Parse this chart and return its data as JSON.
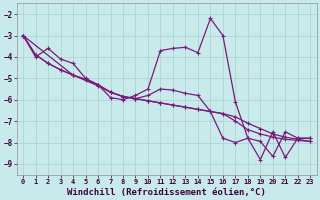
{
  "background_color": "#c8eaea",
  "grid_color": "#b0d8d8",
  "line_color": "#7b1a7b",
  "xlabel": "Windchill (Refroidissement éolien,°C)",
  "ylim": [
    -9.5,
    -1.5
  ],
  "xlim": [
    -0.5,
    23.5
  ],
  "yticks": [
    -9,
    -8,
    -7,
    -6,
    -5,
    -4,
    -3,
    -2
  ],
  "xticks": [
    0,
    1,
    2,
    3,
    4,
    5,
    6,
    7,
    8,
    9,
    10,
    11,
    12,
    13,
    14,
    15,
    16,
    17,
    18,
    19,
    20,
    21,
    22,
    23
  ],
  "line1_x": [
    0,
    1,
    2,
    3,
    4,
    5,
    6,
    7,
    8,
    9,
    10,
    11,
    12,
    13,
    14,
    15,
    16,
    17,
    18,
    19,
    20,
    21,
    22,
    23
  ],
  "line1_y": [
    -3.0,
    -4.0,
    -3.6,
    -4.1,
    -4.3,
    -5.0,
    -5.3,
    -5.9,
    -6.0,
    -5.8,
    -5.5,
    -3.7,
    -3.6,
    -3.55,
    -3.8,
    -2.2,
    -3.0,
    -6.1,
    -7.8,
    -7.95,
    -8.65,
    -7.5,
    -7.8,
    -7.8
  ],
  "line2_x": [
    0,
    1,
    2,
    3,
    4,
    5,
    6,
    7,
    8,
    9,
    10,
    11,
    12,
    13,
    14,
    15,
    16,
    17,
    18,
    19,
    20,
    21,
    22,
    23
  ],
  "line2_y": [
    -3.0,
    -3.9,
    -4.3,
    -4.6,
    -4.85,
    -5.1,
    -5.35,
    -5.65,
    -5.85,
    -5.95,
    -6.05,
    -6.15,
    -6.25,
    -6.35,
    -6.45,
    -6.55,
    -6.65,
    -6.8,
    -7.1,
    -7.35,
    -7.6,
    -7.75,
    -7.85,
    -7.95
  ],
  "line3_x": [
    0,
    1,
    2,
    3,
    4,
    5,
    6,
    7,
    8,
    9,
    10,
    11,
    12,
    13,
    14,
    15,
    16,
    17,
    18,
    19,
    20,
    21,
    22,
    23
  ],
  "line3_y": [
    -3.0,
    -3.9,
    -4.3,
    -4.6,
    -4.85,
    -5.05,
    -5.3,
    -5.65,
    -5.85,
    -5.95,
    -6.05,
    -6.15,
    -6.25,
    -6.35,
    -6.45,
    -6.55,
    -6.65,
    -7.0,
    -7.4,
    -7.6,
    -7.75,
    -7.85,
    -7.9,
    -7.95
  ],
  "line4_x": [
    0,
    4,
    5,
    6,
    7,
    8,
    9,
    10,
    11,
    12,
    13,
    14,
    15,
    16,
    17,
    18,
    19,
    20,
    21,
    22,
    23
  ],
  "line4_y": [
    -3.0,
    -4.85,
    -5.05,
    -5.3,
    -5.65,
    -5.85,
    -5.95,
    -5.8,
    -5.5,
    -5.55,
    -5.7,
    -5.8,
    -6.55,
    -7.8,
    -8.0,
    -7.8,
    -8.8,
    -7.5,
    -8.7,
    -7.8,
    -7.8
  ]
}
